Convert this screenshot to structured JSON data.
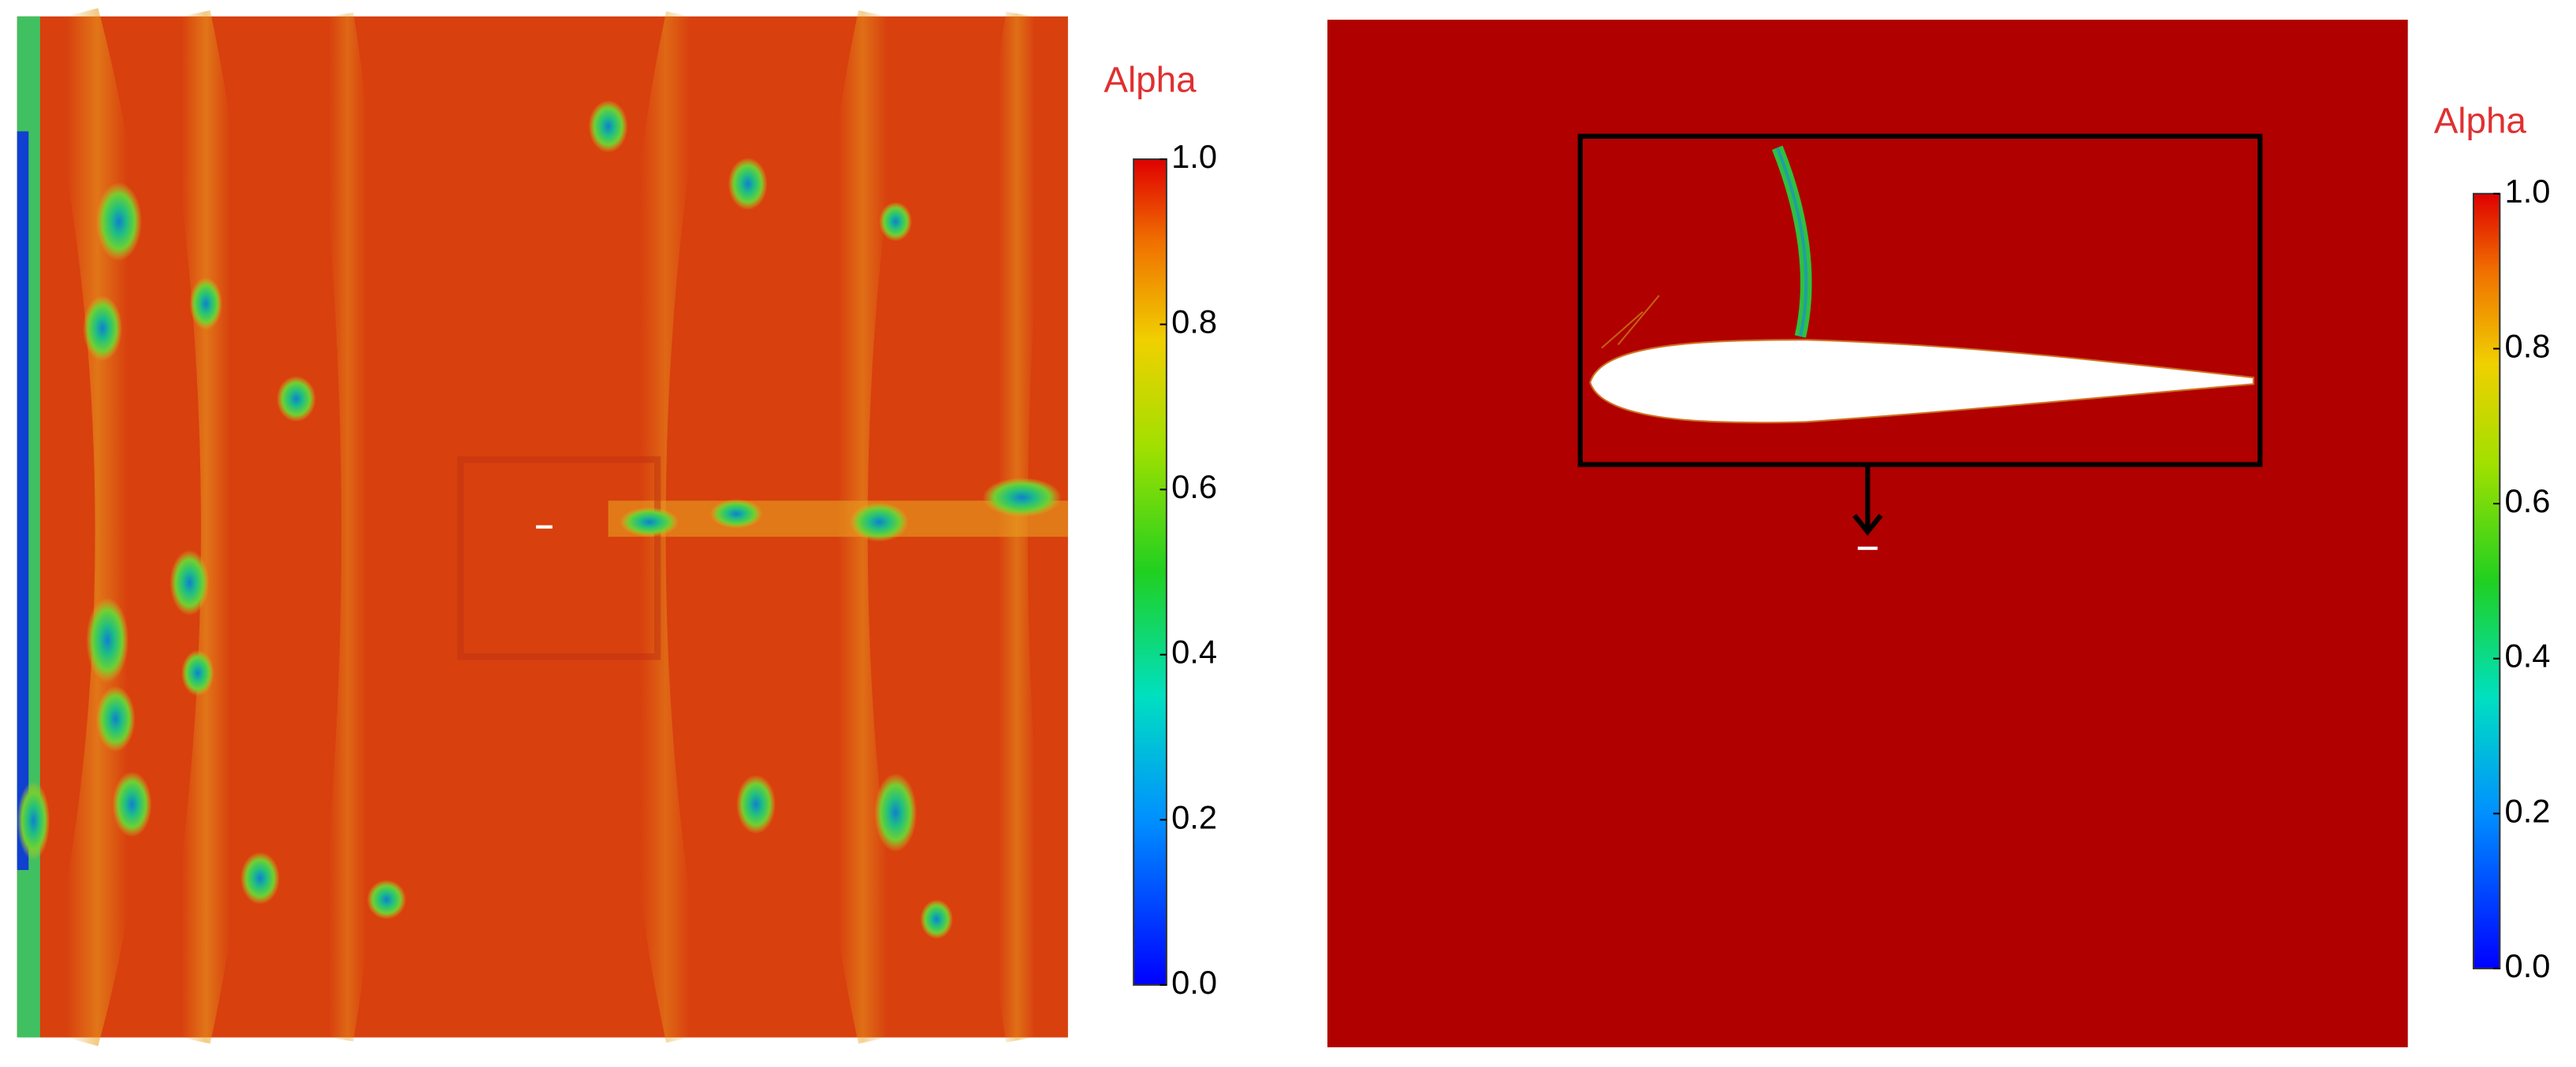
{
  "chart_data": [
    {
      "type": "heatmap",
      "colorbar_label": "Alpha",
      "clim": [
        0,
        1
      ],
      "cticks": [
        {
          "value": 0,
          "label": "0.0"
        },
        {
          "value": 0.2,
          "label": "0.2"
        },
        {
          "value": 0.4,
          "label": "0.4"
        },
        {
          "value": 0.6,
          "label": "0.6"
        },
        {
          "value": 0.8,
          "label": "0.8"
        },
        {
          "value": 1,
          "label": "1.0"
        }
      ]
    },
    {
      "type": "heatmap",
      "colorbar_label": "Alpha",
      "clim": [
        0,
        1
      ],
      "cticks": [
        {
          "value": 0,
          "label": "0.0"
        },
        {
          "value": 0.2,
          "label": "0.2"
        },
        {
          "value": 0.4,
          "label": "0.4"
        },
        {
          "value": 0.6,
          "label": "0.6"
        },
        {
          "value": 0.8,
          "label": "0.8"
        },
        {
          "value": 1,
          "label": "1.0"
        }
      ]
    }
  ]
}
